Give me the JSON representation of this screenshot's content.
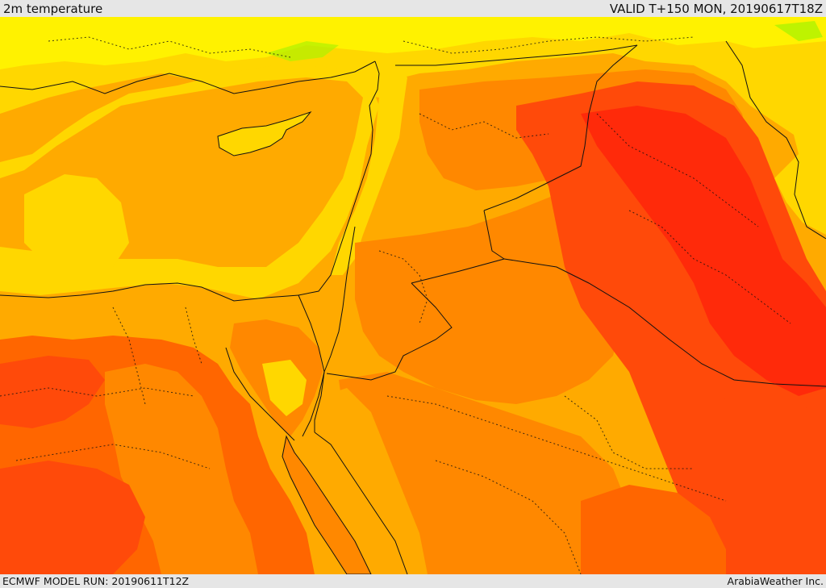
{
  "header": {
    "title": "2m temperature",
    "valid_time": "VALID T+150 MON, 20190617T18Z"
  },
  "footer": {
    "model_run": "ECMWF MODEL RUN: 20190611T12Z",
    "credit": "ArabiaWeather Inc."
  },
  "map": {
    "field": "2m temperature",
    "region": "Eastern Mediterranean / Middle East",
    "colors": {
      "sea_background": "#ffaa00",
      "cool_green": "#aef200",
      "light_yellow": "#fff200",
      "yellow": "#ffd700",
      "amber": "#ffaa00",
      "orange": "#ff8800",
      "dark_orange": "#ff6600",
      "red_orange": "#ff4a0a",
      "red": "#ff2a0a",
      "boundary_line": "#111111"
    }
  }
}
